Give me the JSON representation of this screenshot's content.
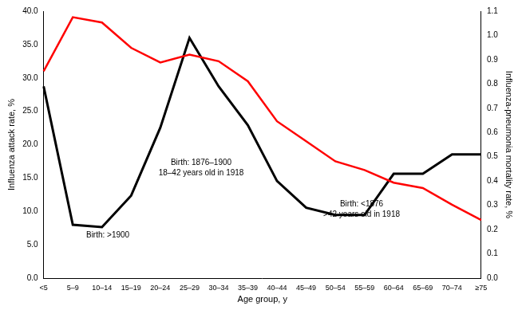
{
  "chart_data": {
    "type": "line",
    "x_label": "Age group, y",
    "y_label": "Influenza attack rate, %",
    "y2_label": "Influenza-pneumonia mortality rate, %",
    "categories": [
      "<5",
      "5–9",
      "10–14",
      "15–19",
      "20–24",
      "25–29",
      "30–34",
      "35–39",
      "40–44",
      "45–49",
      "50–54",
      "55–59",
      "60–64",
      "65–69",
      "70–74",
      "≥75"
    ],
    "series": [
      {
        "name": "Influenza attack rate",
        "color": "#ff0000",
        "line_style": "solid",
        "marker": "none",
        "values": [
          31,
          39.1,
          38.3,
          34.5,
          32.3,
          33.5,
          32.5,
          29.5,
          23.5,
          20.5,
          17.5,
          16.2,
          14.3,
          13.5,
          11,
          8.7
        ]
      },
      {
        "name": "Influenza-pneumonia mortality rate",
        "color": "#000000",
        "line_style": "solid",
        "marker": "none",
        "axis": "y2",
        "values": [
          0.79,
          0.22,
          0.21,
          0.34,
          0.62,
          0.99,
          0.79,
          0.63,
          0.4,
          0.29,
          0.26,
          0.26,
          0.43,
          0.43,
          0.51,
          0.51
        ]
      }
    ],
    "ylim": [
      0,
      40
    ],
    "yticks": [
      {
        "value": 0,
        "label": "0.0"
      },
      {
        "value": 5,
        "label": "5.0"
      },
      {
        "value": 10,
        "label": "10.0"
      },
      {
        "value": 15,
        "label": "15.0"
      },
      {
        "value": 20,
        "label": "20.0"
      },
      {
        "value": 25,
        "label": "25.0"
      },
      {
        "value": 30,
        "label": "30.0"
      },
      {
        "value": 35,
        "label": "35.0"
      },
      {
        "value": 40,
        "label": "40.0"
      }
    ],
    "y2lim": [
      0,
      1.1
    ],
    "y2ticks": [
      {
        "value": 0,
        "label": "0.0"
      },
      0.1,
      0.2,
      0.3,
      0.4,
      0.5,
      0.6,
      0.7,
      0.8,
      0.9,
      {
        "value": 1,
        "label": "1.0"
      },
      1.1
    ],
    "grid": false,
    "annotations": [
      {
        "lines": [
          "Birth: >1900"
        ]
      },
      {
        "lines": [
          "Birth: 1876–1900",
          "18–42 years old in 1918"
        ]
      },
      {
        "lines": [
          "Birth: <1876",
          ">42 years old in 1918"
        ]
      }
    ]
  }
}
